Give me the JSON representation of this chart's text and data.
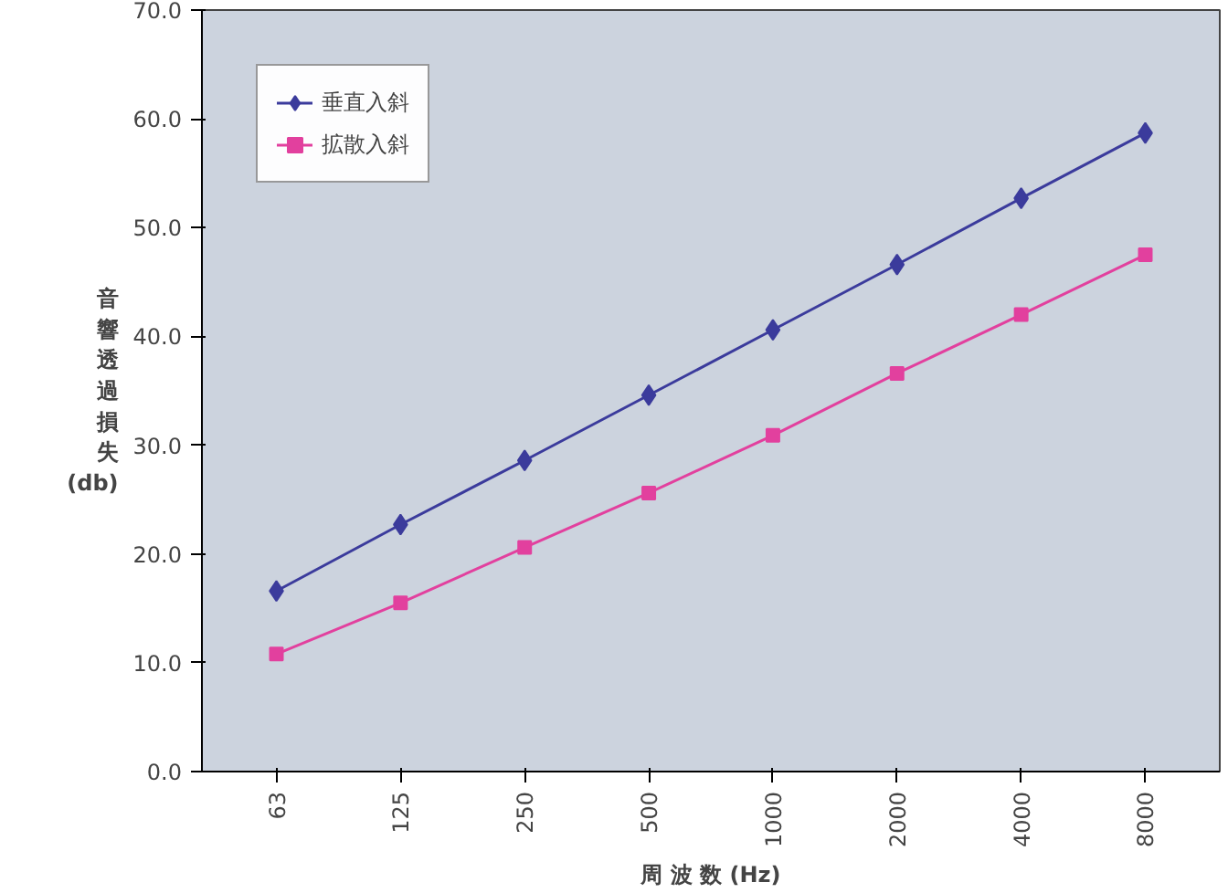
{
  "chart_data": {
    "type": "line",
    "xlabel": "周 波 数 (Hz)",
    "ylabel": "音響透過損失 (db)",
    "categories": [
      "63",
      "125",
      "250",
      "500",
      "1000",
      "2000",
      "4000",
      "8000"
    ],
    "series": [
      {
        "name": "垂直入斜",
        "color": "#3b3b9c",
        "marker": "diamond",
        "values": [
          16.6,
          22.7,
          28.6,
          34.6,
          40.6,
          46.6,
          52.7,
          58.7
        ]
      },
      {
        "name": "拡散入斜",
        "color": "#e2409e",
        "marker": "square",
        "values": [
          10.8,
          15.5,
          20.6,
          25.6,
          30.9,
          36.6,
          42.0,
          47.5
        ]
      }
    ],
    "ylim": [
      0,
      70
    ],
    "yticks": [
      {
        "value": 0,
        "label": "0.0"
      },
      {
        "value": 10,
        "label": "10.0"
      },
      {
        "value": 20,
        "label": "20.0"
      },
      {
        "value": 30,
        "label": "30.0"
      },
      {
        "value": 40,
        "label": "40.0"
      },
      {
        "value": 50,
        "label": "50.0"
      },
      {
        "value": 60,
        "label": "60.0"
      },
      {
        "value": 70,
        "label": "70.0"
      }
    ],
    "grid": false,
    "legend": "top left",
    "line_style": "solid"
  }
}
